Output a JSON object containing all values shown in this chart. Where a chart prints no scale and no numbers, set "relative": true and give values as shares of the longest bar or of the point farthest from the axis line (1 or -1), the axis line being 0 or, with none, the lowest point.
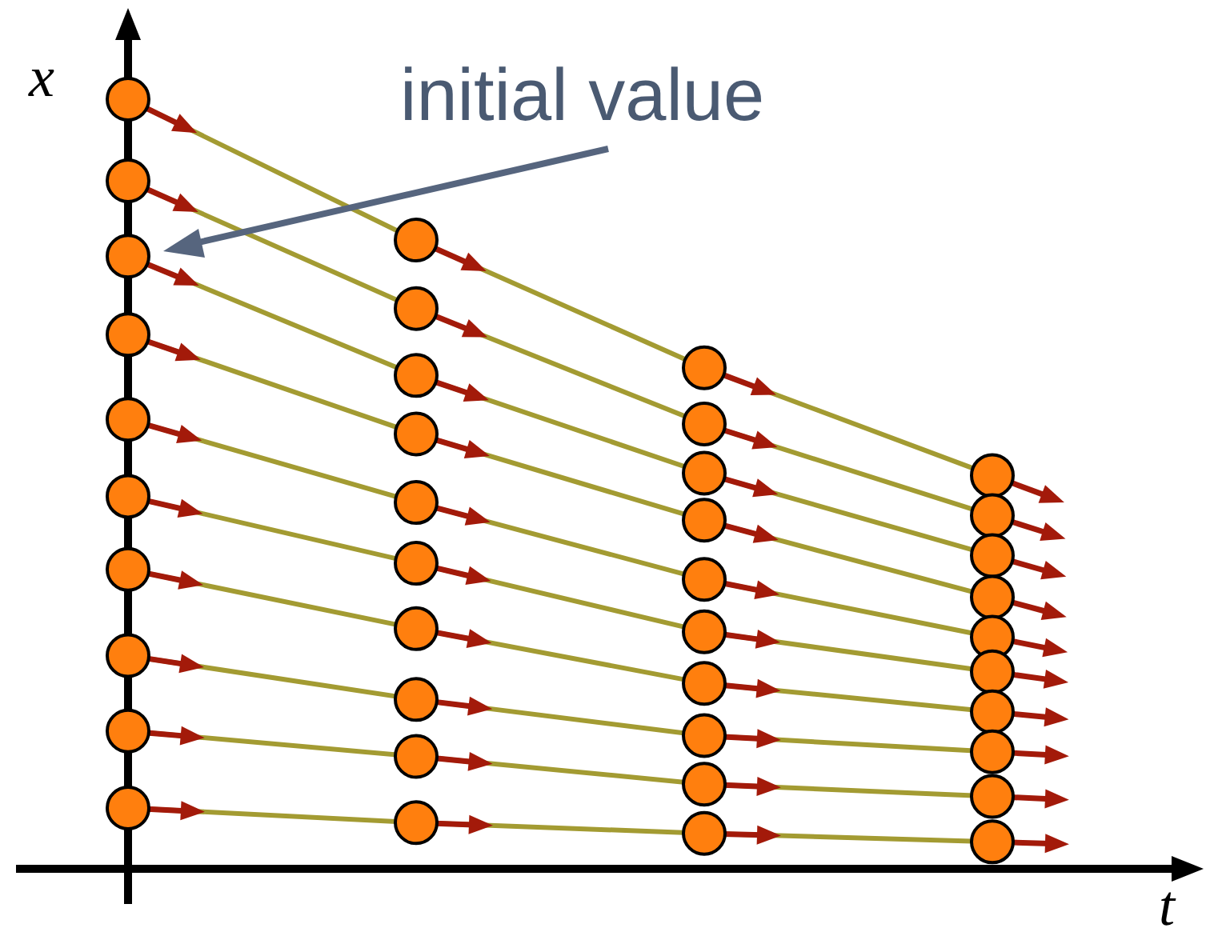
{
  "chart_data": {
    "type": "line",
    "relative": true,
    "marker": "circle",
    "xlabel": "t",
    "ylabel": "x",
    "annotations": [
      "initial value"
    ],
    "categories": [
      null,
      null,
      null,
      null
    ],
    "series": [
      {
        "color": "#a39b32",
        "values": [
          1,
          0.817,
          0.651,
          0.511
        ]
      },
      {
        "color": "#a39b32",
        "values": [
          0.894,
          0.728,
          0.578,
          0.459
        ]
      },
      {
        "color": "#a39b32",
        "values": [
          0.796,
          0.641,
          0.514,
          0.407
        ]
      },
      {
        "color": "#a39b32",
        "values": [
          0.694,
          0.565,
          0.453,
          0.353
        ]
      },
      {
        "color": "#a39b32",
        "values": [
          0.584,
          0.476,
          0.376,
          0.301
        ]
      },
      {
        "color": "#a39b32",
        "values": [
          0.484,
          0.397,
          0.308,
          0.256
        ]
      },
      {
        "color": "#a39b32",
        "values": [
          0.389,
          0.312,
          0.241,
          0.204
        ]
      },
      {
        "color": "#a39b32",
        "values": [
          0.277,
          0.22,
          0.173,
          0.152
        ]
      },
      {
        "color": "#a39b32",
        "values": [
          0.179,
          0.146,
          0.11,
          0.094
        ]
      },
      {
        "color": "#a39b32",
        "values": [
          0.079,
          0.06,
          0.046,
          0.035
        ]
      }
    ]
  }
}
